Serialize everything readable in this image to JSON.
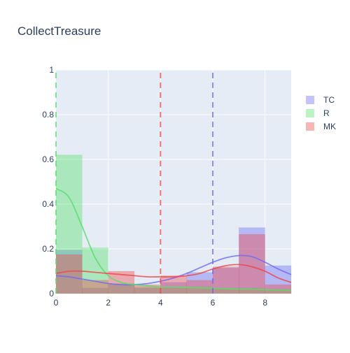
{
  "colors": {
    "plot_bg": "#e5ecf6",
    "grid": "#ffffff",
    "text": "#2a3f5f",
    "TC": "#6b6bf2",
    "R": "#55e068",
    "MK": "#ef4545"
  },
  "chart_data": {
    "type": "histogram",
    "title": "CollectTreasure",
    "xlim": [
      0,
      9
    ],
    "ylim": [
      0,
      1
    ],
    "x_ticks": [
      "0",
      "2",
      "4",
      "6",
      "8"
    ],
    "y_ticks": [
      "0",
      "0.2",
      "0.4",
      "0.6",
      "0.8",
      "1"
    ],
    "bins": [
      [
        0,
        1
      ],
      [
        1,
        2
      ],
      [
        2,
        3
      ],
      [
        3,
        4
      ],
      [
        4,
        5
      ],
      [
        5,
        6
      ],
      [
        6,
        7
      ],
      [
        7,
        8
      ],
      [
        8,
        9
      ]
    ],
    "legend_position": "top-right",
    "series": [
      {
        "name": "TC",
        "key": "TC",
        "values": [
          0.195,
          0.025,
          0.04,
          0.025,
          0.05,
          0.095,
          0.115,
          0.295,
          0.125
        ],
        "mean_line": 6.0,
        "kde_x": [
          0,
          0.5,
          1,
          1.5,
          2,
          2.5,
          3,
          3.5,
          4,
          4.5,
          5,
          5.5,
          6,
          6.5,
          7,
          7.5,
          8,
          8.5,
          9
        ],
        "kde_y": [
          0.08,
          0.075,
          0.065,
          0.055,
          0.045,
          0.04,
          0.04,
          0.045,
          0.055,
          0.07,
          0.09,
          0.115,
          0.14,
          0.16,
          0.17,
          0.165,
          0.14,
          0.11,
          0.085
        ]
      },
      {
        "name": "R",
        "key": "R",
        "values": [
          0.62,
          0.205,
          0.045,
          0.03,
          0.025,
          0.03,
          0.025,
          0.025,
          0.02
        ],
        "mean_line": 0.0,
        "kde_x": [
          0,
          0.5,
          1,
          1.5,
          2,
          2.5,
          3,
          3.5,
          4,
          4.5,
          5,
          5.5,
          6,
          6.5,
          7,
          7.5,
          8,
          8.5,
          9
        ],
        "kde_y": [
          0.47,
          0.43,
          0.3,
          0.16,
          0.08,
          0.05,
          0.04,
          0.035,
          0.03,
          0.03,
          0.028,
          0.026,
          0.024,
          0.022,
          0.02,
          0.02,
          0.018,
          0.016,
          0.015
        ]
      },
      {
        "name": "MK",
        "key": "MK",
        "values": [
          0.175,
          0.06,
          0.1,
          0.04,
          0.08,
          0.06,
          0.12,
          0.265,
          0.04
        ],
        "mean_line": 4.0,
        "kde_x": [
          0,
          0.5,
          1,
          1.5,
          2,
          2.5,
          3,
          3.5,
          4,
          4.5,
          5,
          5.5,
          6,
          6.5,
          7,
          7.5,
          8,
          8.5,
          9
        ],
        "kde_y": [
          0.09,
          0.1,
          0.1,
          0.095,
          0.09,
          0.085,
          0.08,
          0.075,
          0.075,
          0.075,
          0.08,
          0.09,
          0.11,
          0.125,
          0.13,
          0.12,
          0.1,
          0.07,
          0.05
        ]
      }
    ]
  }
}
